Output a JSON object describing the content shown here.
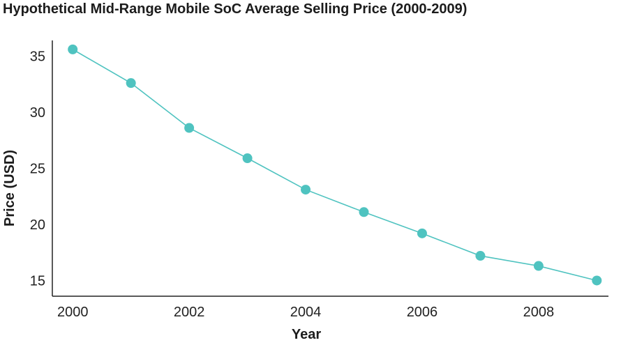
{
  "chart_data": {
    "type": "line",
    "title": "Hypothetical Mid-Range Mobile SoC Average Selling Price (2000-2009)",
    "xlabel": "Year",
    "ylabel": "Price (USD)",
    "x": [
      2000,
      2001,
      2002,
      2003,
      2004,
      2005,
      2006,
      2007,
      2008,
      2009
    ],
    "series": [
      {
        "values": [
          35.6,
          32.6,
          28.6,
          25.9,
          23.1,
          21.1,
          19.2,
          17.2,
          16.3,
          15.0
        ]
      }
    ],
    "xticks": [
      "2000",
      "2002",
      "2004",
      "2006",
      "2008"
    ],
    "yticks": [
      "15",
      "20",
      "25",
      "30",
      "35"
    ],
    "xlim": [
      1999.65,
      2009.2
    ],
    "ylim": [
      13.6,
      36.4
    ],
    "grid": false,
    "color": "#4fc3c0"
  }
}
